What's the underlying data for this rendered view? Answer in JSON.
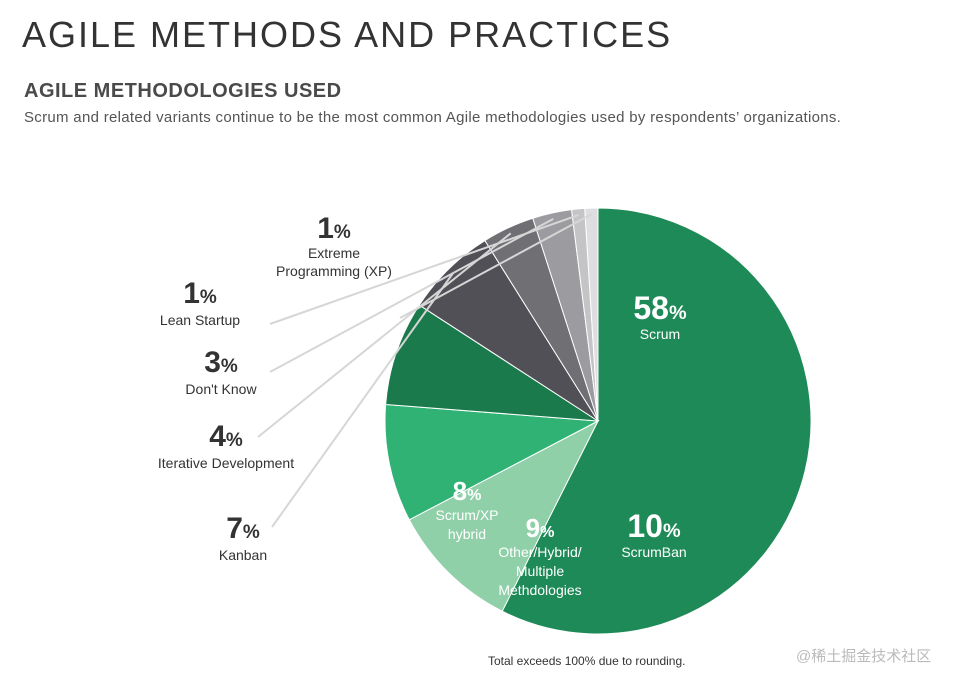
{
  "header": {
    "title": "AGILE METHODS AND PRACTICES",
    "subtitle": "AGILE METHODOLOGIES USED",
    "description": "Scrum and related variants continue to be the most common Agile methodologies used by respondents’ organizations."
  },
  "footnote": "Total exceeds 100% due to rounding.",
  "watermark": "@稀土掘金技术社区",
  "chart_data": {
    "type": "pie",
    "title": "AGILE METHODOLOGIES USED",
    "start": "top, clockwise",
    "slices": [
      {
        "label": "Scrum",
        "value": 58,
        "display": "58",
        "color": "#1e8a57",
        "label_color": "#ffffff"
      },
      {
        "label": "ScrumBan",
        "value": 10,
        "display": "10",
        "color": "#8fd0a9",
        "label_color": "#ffffff"
      },
      {
        "label": "Other/Hybrid/ Multiple Methdologies",
        "lines": [
          "Other/Hybrid/",
          "Multiple",
          "Methdologies"
        ],
        "value": 9,
        "display": "9",
        "color": "#2fb274",
        "label_color": "#ffffff"
      },
      {
        "label": "Scrum/XP hybrid",
        "lines": [
          "Scrum/XP",
          "hybrid"
        ],
        "value": 8,
        "display": "8",
        "color": "#1b7a4c",
        "label_color": "#ffffff"
      },
      {
        "label": "Kanban",
        "value": 7,
        "display": "7",
        "color": "#505056",
        "label_color": "#333333"
      },
      {
        "label": "Iterative Development",
        "value": 4,
        "display": "4",
        "color": "#6f6f74",
        "label_color": "#333333"
      },
      {
        "label": "Don't Know",
        "value": 3,
        "display": "3",
        "color": "#9c9ca0",
        "label_color": "#333333"
      },
      {
        "label": "Lean Startup",
        "value": 1,
        "display": "1",
        "color": "#c4c4c7",
        "label_color": "#333333"
      },
      {
        "label": "Extreme Programming (XP)",
        "lines": [
          "Extreme",
          "Programming (XP)"
        ],
        "value": 1,
        "display": "1",
        "color": "#dedee0",
        "label_color": "#333333"
      }
    ],
    "percent_suffix": "%"
  }
}
